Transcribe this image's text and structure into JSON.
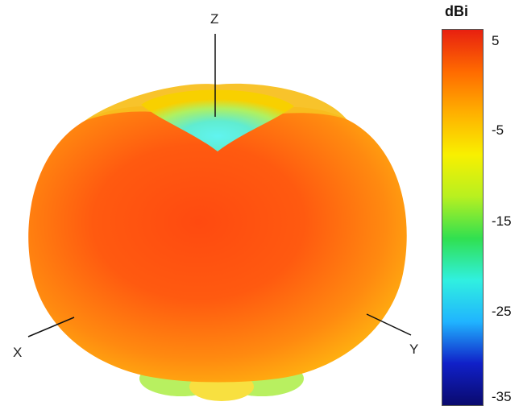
{
  "axes": {
    "z_label": "Z",
    "x_label": "X",
    "y_label": "Y"
  },
  "colorbar": {
    "unit": "dBi",
    "ticks": [
      "5",
      "-5",
      "-15",
      "-25",
      "-35"
    ],
    "range": [
      -35,
      7
    ],
    "colors": [
      "#0a0a6e",
      "#1020c8",
      "#20b4ff",
      "#30f0e0",
      "#30e050",
      "#b8f020",
      "#f8f000",
      "#ffb000",
      "#ff6a00",
      "#e82010"
    ]
  },
  "pattern": {
    "peak_color": "#ff5a10",
    "null_color": "#60f0e0",
    "rim_color": "#f8d000"
  }
}
